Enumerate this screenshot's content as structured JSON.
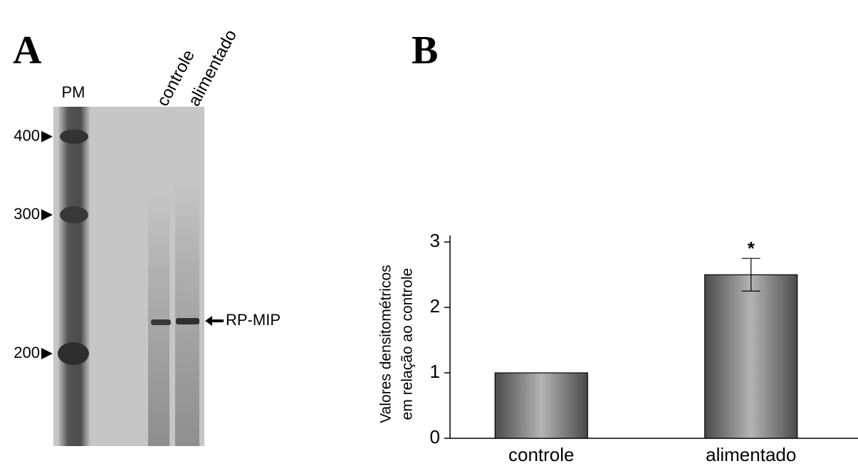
{
  "panels": [
    "A",
    "B"
  ],
  "gel": {
    "lane_labels": [
      "PM",
      "controle",
      "alimentado"
    ],
    "markers": [
      "400",
      "300",
      "200"
    ],
    "band_label": "RP-MIP"
  },
  "chart_data": {
    "type": "bar",
    "categories": [
      "controle",
      "alimentado"
    ],
    "values": [
      1.0,
      2.5
    ],
    "errors": [
      null,
      0.25
    ],
    "annotations": [
      "*"
    ],
    "ylabel": [
      "Valores densitométricos",
      "em relação ao controle"
    ],
    "color": "#b4b4b4",
    "ylim": [
      0,
      3.1
    ],
    "yticks": [
      0,
      1,
      2,
      3
    ]
  }
}
